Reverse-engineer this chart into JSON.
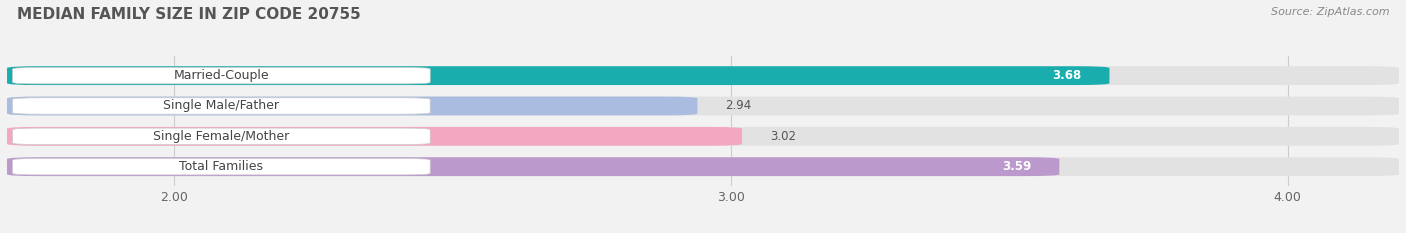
{
  "title": "MEDIAN FAMILY SIZE IN ZIP CODE 20755",
  "source": "Source: ZipAtlas.com",
  "categories": [
    "Married-Couple",
    "Single Male/Father",
    "Single Female/Mother",
    "Total Families"
  ],
  "values": [
    3.68,
    2.94,
    3.02,
    3.59
  ],
  "bar_colors": [
    "#1aadad",
    "#aabcdf",
    "#f4a7c0",
    "#bb99cc"
  ],
  "xlim": [
    1.7,
    4.2
  ],
  "xticks": [
    2.0,
    3.0,
    4.0
  ],
  "xtick_labels": [
    "2.00",
    "3.00",
    "4.00"
  ],
  "bar_height": 0.62,
  "title_fontsize": 11,
  "source_fontsize": 8,
  "label_fontsize": 9,
  "value_fontsize": 8.5,
  "tick_fontsize": 9,
  "background_color": "#f2f2f2",
  "bar_bg_color": "#e2e2e2",
  "value_inside_colors": [
    "#19a8a8",
    "#b89bc8"
  ],
  "value_outside_color": "#666666"
}
